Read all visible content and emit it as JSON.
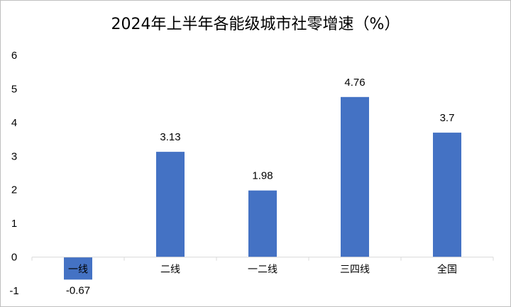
{
  "chart_data": {
    "type": "bar",
    "title": "2024年上半年各能级城市社零增速（%）",
    "categories": [
      "一线",
      "二线",
      "一二线",
      "三四线",
      "全国"
    ],
    "values": [
      -0.67,
      3.13,
      1.98,
      4.76,
      3.7
    ],
    "data_labels": [
      "-0.67",
      "3.13",
      "1.98",
      "4.76",
      "3.7"
    ],
    "y_ticks": [
      -1,
      0,
      1,
      2,
      3,
      4,
      5,
      6
    ],
    "ylim": [
      -1,
      6
    ],
    "xlabel": "",
    "ylabel": "",
    "grid": false,
    "legend": "none",
    "bar_color": "#4472C4",
    "axis_color": "#d9d9d9"
  }
}
